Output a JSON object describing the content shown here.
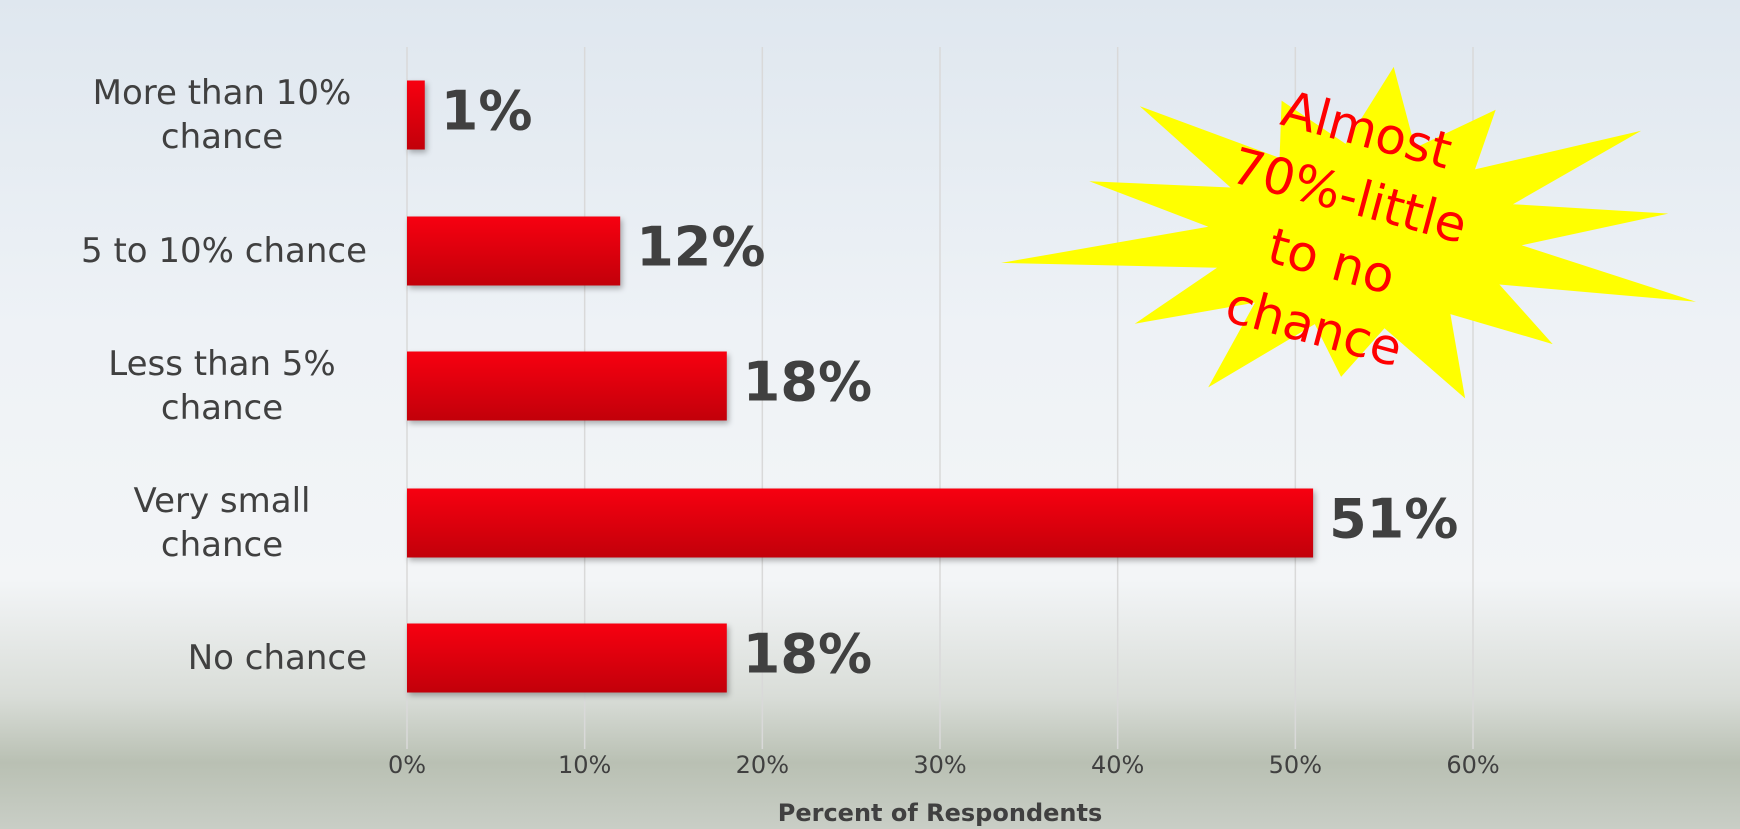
{
  "chart_data": {
    "type": "barh",
    "categories": [
      "More than 10% chance",
      "5 to 10% chance",
      "Less than 5% chance",
      "Very small chance",
      "No chance"
    ],
    "values": [
      1,
      12,
      18,
      51,
      18
    ],
    "value_labels": [
      "1%",
      "12%",
      "18%",
      "51%",
      "18%"
    ],
    "color": "#e8000e",
    "xlim": [
      0,
      60
    ],
    "xticks": [
      {
        "value": 0,
        "label": "0%"
      },
      {
        "value": 10,
        "label": "10%"
      },
      {
        "value": 20,
        "label": "20%"
      },
      {
        "value": 30,
        "label": "30%"
      },
      {
        "value": 40,
        "label": "40%"
      },
      {
        "value": 50,
        "label": "50%"
      },
      {
        "value": 60,
        "label": "60%"
      }
    ],
    "xlabel": "Percent of Respondents",
    "grid": true,
    "annotation": [
      "Almost",
      "70%-little",
      "to no",
      "chance"
    ]
  }
}
